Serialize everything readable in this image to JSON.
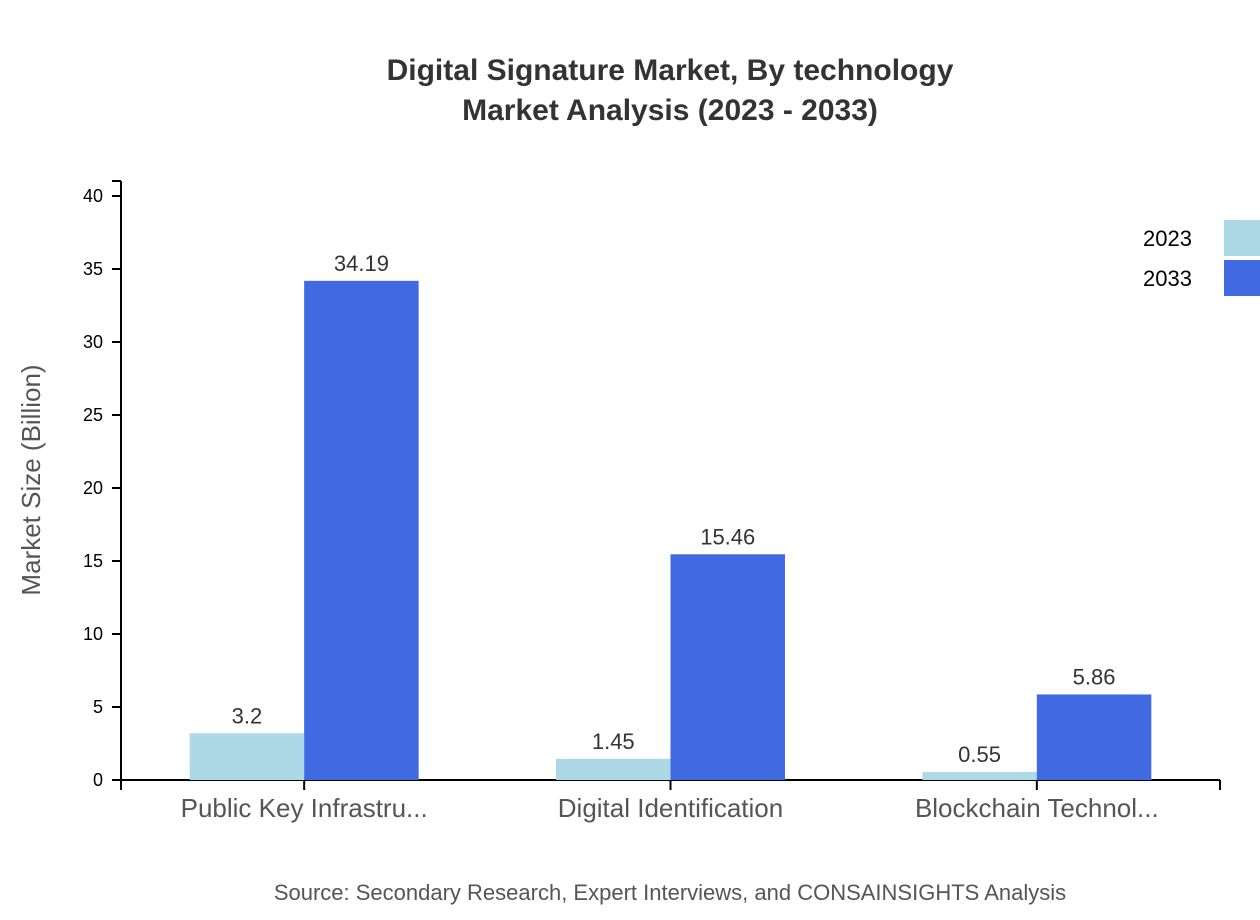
{
  "chart_data": {
    "type": "bar",
    "title": [
      "Digital Signature Market, By technology",
      "Market Analysis (2023 - 2033)"
    ],
    "xlabel": "",
    "ylabel": "Market Size (Billion)",
    "ylim": [
      0,
      40
    ],
    "yticks": [
      0,
      5,
      10,
      15,
      20,
      25,
      30,
      35,
      40
    ],
    "categories": [
      "Public Key Infrastru...",
      "Digital Identification",
      "Blockchain Technol..."
    ],
    "series": [
      {
        "name": "2023",
        "values": [
          3.2,
          1.45,
          0.55
        ],
        "color": "#add8e6"
      },
      {
        "name": "2033",
        "values": [
          34.19,
          15.46,
          5.86
        ],
        "color": "#4169e1"
      }
    ],
    "legend_position": "top-right",
    "grid": false,
    "source": "Source: Secondary Research, Expert Interviews, and CONSAINSIGHTS Analysis"
  }
}
